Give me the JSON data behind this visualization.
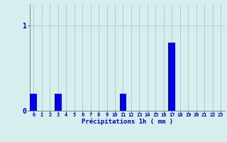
{
  "hours": [
    0,
    1,
    2,
    3,
    4,
    5,
    6,
    7,
    8,
    9,
    10,
    11,
    12,
    13,
    14,
    15,
    16,
    17,
    18,
    19,
    20,
    21,
    22,
    23
  ],
  "values": [
    0.2,
    0.0,
    0.0,
    0.2,
    0.0,
    0.0,
    0.0,
    0.0,
    0.0,
    0.0,
    0.0,
    0.2,
    0.0,
    0.0,
    0.0,
    0.0,
    0.0,
    0.8,
    0.0,
    0.0,
    0.0,
    0.0,
    0.0,
    0.0
  ],
  "bar_color": "#0000ee",
  "background_color": "#d6eeee",
  "grid_color": "#aacccc",
  "xlabel": "Précipitations 1h ( mm )",
  "xlabel_color": "#0000cc",
  "tick_color": "#0000cc",
  "ytick_val": 1.0,
  "ylim": [
    0,
    1.25
  ],
  "xlim": [
    -0.5,
    23.5
  ],
  "figsize": [
    3.2,
    2.0
  ],
  "dpi": 100
}
